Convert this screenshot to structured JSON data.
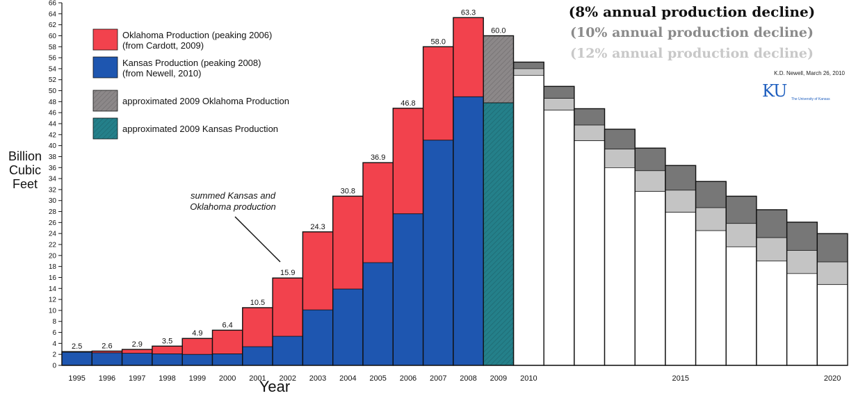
{
  "chart_data": {
    "type": "bar",
    "stacked": true,
    "xlabel": "Year",
    "ylabel_lines": [
      "Billion",
      "Cubic",
      "Feet"
    ],
    "ylim": [
      0,
      66
    ],
    "ytick_step": 2,
    "grid": false,
    "legend_position": "top-left",
    "categories": [
      "1995",
      "1996",
      "1997",
      "1998",
      "1999",
      "2000",
      "2001",
      "2002",
      "2003",
      "2004",
      "2005",
      "2006",
      "2007",
      "2008",
      "2009"
    ],
    "totals": [
      2.5,
      2.6,
      2.9,
      3.5,
      4.9,
      6.4,
      10.5,
      15.9,
      24.3,
      30.8,
      36.9,
      46.8,
      58.0,
      63.3,
      60.0
    ],
    "total_labels": [
      "2.5",
      "2.6",
      "2.9",
      "3.5",
      "4.9",
      "6.4",
      "10.5",
      "15.9",
      "24.3",
      "30.8",
      "36.9",
      "46.8",
      "58.0",
      "63.3",
      "60.0"
    ],
    "series": [
      {
        "name": "Kansas Production (peaking 2008)",
        "source": "(from Newell, 2010)",
        "color": "#1e56b0",
        "values": [
          2.4,
          2.3,
          2.2,
          2.1,
          2.0,
          2.1,
          3.4,
          5.3,
          10.1,
          13.9,
          18.7,
          27.6,
          41.0,
          48.9,
          47.8
        ]
      },
      {
        "name": "Oklahoma Production (peaking 2006)",
        "source": "(from Cardott, 2009)",
        "color": "#f2424d",
        "values": [
          0.1,
          0.3,
          0.7,
          1.4,
          2.9,
          4.3,
          7.1,
          10.6,
          14.2,
          16.9,
          18.2,
          19.2,
          17.0,
          14.4,
          12.2
        ]
      }
    ],
    "approximated": {
      "category": "2009",
      "oklahoma_label": "approximated 2009 Oklahoma Production",
      "oklahoma_color": "#8c8889",
      "kansas_label": "approximated 2009 Kansas Production",
      "kansas_color": "#24808a"
    },
    "projection": {
      "x_labels": [
        {
          "year": 2010,
          "label": "2010"
        },
        {
          "year": 2015,
          "label": "2015"
        },
        {
          "year": 2020,
          "label": "2020"
        }
      ],
      "start_year": 2010,
      "end_year": 2020,
      "base_value": 60.0,
      "scenarios": [
        {
          "name": "(8% annual production decline)",
          "rate": 0.08,
          "color": "#777777",
          "text_color": "#111111"
        },
        {
          "name": "(10% annual production decline)",
          "rate": 0.1,
          "color": "#c4c4c4",
          "text_color": "#8a8a8a"
        },
        {
          "name": "(12% annual production decline)",
          "rate": 0.12,
          "color": "#ffffff",
          "text_color": "#c8c8c8"
        }
      ]
    },
    "annotation": "summed Kansas and Oklahoma production"
  },
  "credit": "K.D. Newell, March 26, 2010",
  "logo": {
    "text": "KU",
    "subtext": "The University of Kansas",
    "color": "#1f5fbf"
  }
}
